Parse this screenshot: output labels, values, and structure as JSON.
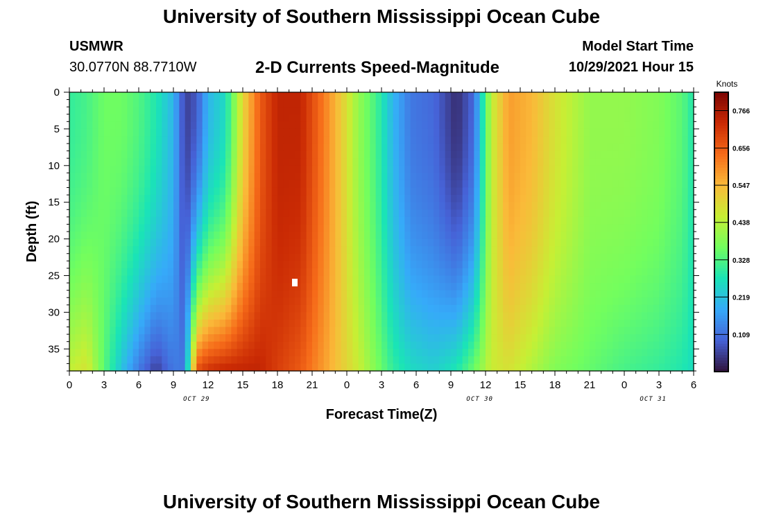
{
  "title": "University of Southern Mississippi Ocean Cube",
  "station": {
    "name": "USMWR",
    "coords": "30.0770N  88.7710W"
  },
  "subtitle": "2-D Currents Speed-Magnitude",
  "model_start": {
    "label": "Model Start Time",
    "value": "10/29/2021 Hour 15"
  },
  "footer_title": "University of Southern Mississippi Ocean Cube",
  "chart_data": {
    "type": "heatmap",
    "title": "2-D Currents Speed-Magnitude",
    "xlabel": "Forecast Time(Z)",
    "ylabel": "Depth (ft)",
    "x_tick_labels": [
      "0",
      "3",
      "6",
      "9",
      "12",
      "15",
      "18",
      "21",
      "0",
      "3",
      "6",
      "9",
      "12",
      "15",
      "18",
      "21",
      "0",
      "3",
      "6"
    ],
    "x_range_hours": [
      0,
      54
    ],
    "date_labels": [
      {
        "text": "OCT 29",
        "hour": 11
      },
      {
        "text": "OCT 30",
        "hour": 35.5
      },
      {
        "text": "OCT 31",
        "hour": 50.5
      }
    ],
    "y_ticks": [
      0,
      5,
      10,
      15,
      20,
      25,
      30,
      35
    ],
    "y_range": [
      0,
      38
    ],
    "y_inverted": true,
    "colorbar": {
      "unit": "Knots",
      "ticks": [
        "0.766",
        "0.656",
        "0.547",
        "0.438",
        "0.328",
        "0.219",
        "0.109"
      ],
      "range": [
        0,
        0.82
      ],
      "colormap": [
        "#30123b",
        "#4662d7",
        "#36aaf9",
        "#1ae4b6",
        "#72fe5e",
        "#c7ef34",
        "#faba39",
        "#f66b19",
        "#ca2a04",
        "#7a0403"
      ]
    },
    "marker": {
      "hour": 19.5,
      "depth": 26
    },
    "speed_time_keys": [
      {
        "hour": 0,
        "surface": 0.3,
        "bottom": 0.45
      },
      {
        "hour": 1.5,
        "surface": 0.32,
        "bottom": 0.48
      },
      {
        "hour": 3,
        "surface": 0.36,
        "bottom": 0.34
      },
      {
        "hour": 4.5,
        "surface": 0.36,
        "bottom": 0.22
      },
      {
        "hour": 6,
        "surface": 0.33,
        "bottom": 0.12
      },
      {
        "hour": 7.5,
        "surface": 0.28,
        "bottom": 0.05
      },
      {
        "hour": 9,
        "surface": 0.2,
        "bottom": 0.12
      },
      {
        "hour": 10,
        "surface": 0.05,
        "bottom": 0.12
      },
      {
        "hour": 11,
        "surface": 0.08,
        "bottom": 0.68
      },
      {
        "hour": 12,
        "surface": 0.2,
        "bottom": 0.72
      },
      {
        "hour": 13.5,
        "surface": 0.26,
        "bottom": 0.74
      },
      {
        "hour": 15,
        "surface": 0.5,
        "bottom": 0.74
      },
      {
        "hour": 16.5,
        "surface": 0.66,
        "bottom": 0.74
      },
      {
        "hour": 18,
        "surface": 0.74,
        "bottom": 0.7
      },
      {
        "hour": 20,
        "surface": 0.74,
        "bottom": 0.66
      },
      {
        "hour": 22,
        "surface": 0.62,
        "bottom": 0.58
      },
      {
        "hour": 23.5,
        "surface": 0.52,
        "bottom": 0.52
      },
      {
        "hour": 25,
        "surface": 0.4,
        "bottom": 0.46
      },
      {
        "hour": 26.5,
        "surface": 0.32,
        "bottom": 0.38
      },
      {
        "hour": 28,
        "surface": 0.2,
        "bottom": 0.3
      },
      {
        "hour": 29.5,
        "surface": 0.12,
        "bottom": 0.26
      },
      {
        "hour": 31.5,
        "surface": 0.1,
        "bottom": 0.24
      },
      {
        "hour": 33.5,
        "surface": 0.03,
        "bottom": 0.28
      },
      {
        "hour": 35,
        "surface": 0.1,
        "bottom": 0.36
      },
      {
        "hour": 36.5,
        "surface": 0.45,
        "bottom": 0.46
      },
      {
        "hour": 38,
        "surface": 0.58,
        "bottom": 0.48
      },
      {
        "hour": 40,
        "surface": 0.55,
        "bottom": 0.43
      },
      {
        "hour": 42,
        "surface": 0.48,
        "bottom": 0.38
      },
      {
        "hour": 45,
        "surface": 0.4,
        "bottom": 0.35
      },
      {
        "hour": 48,
        "surface": 0.4,
        "bottom": 0.32
      },
      {
        "hour": 51,
        "surface": 0.38,
        "bottom": 0.3
      },
      {
        "hour": 53,
        "surface": 0.34,
        "bottom": 0.28
      },
      {
        "hour": 54,
        "surface": 0.28,
        "bottom": 0.26
      }
    ]
  }
}
